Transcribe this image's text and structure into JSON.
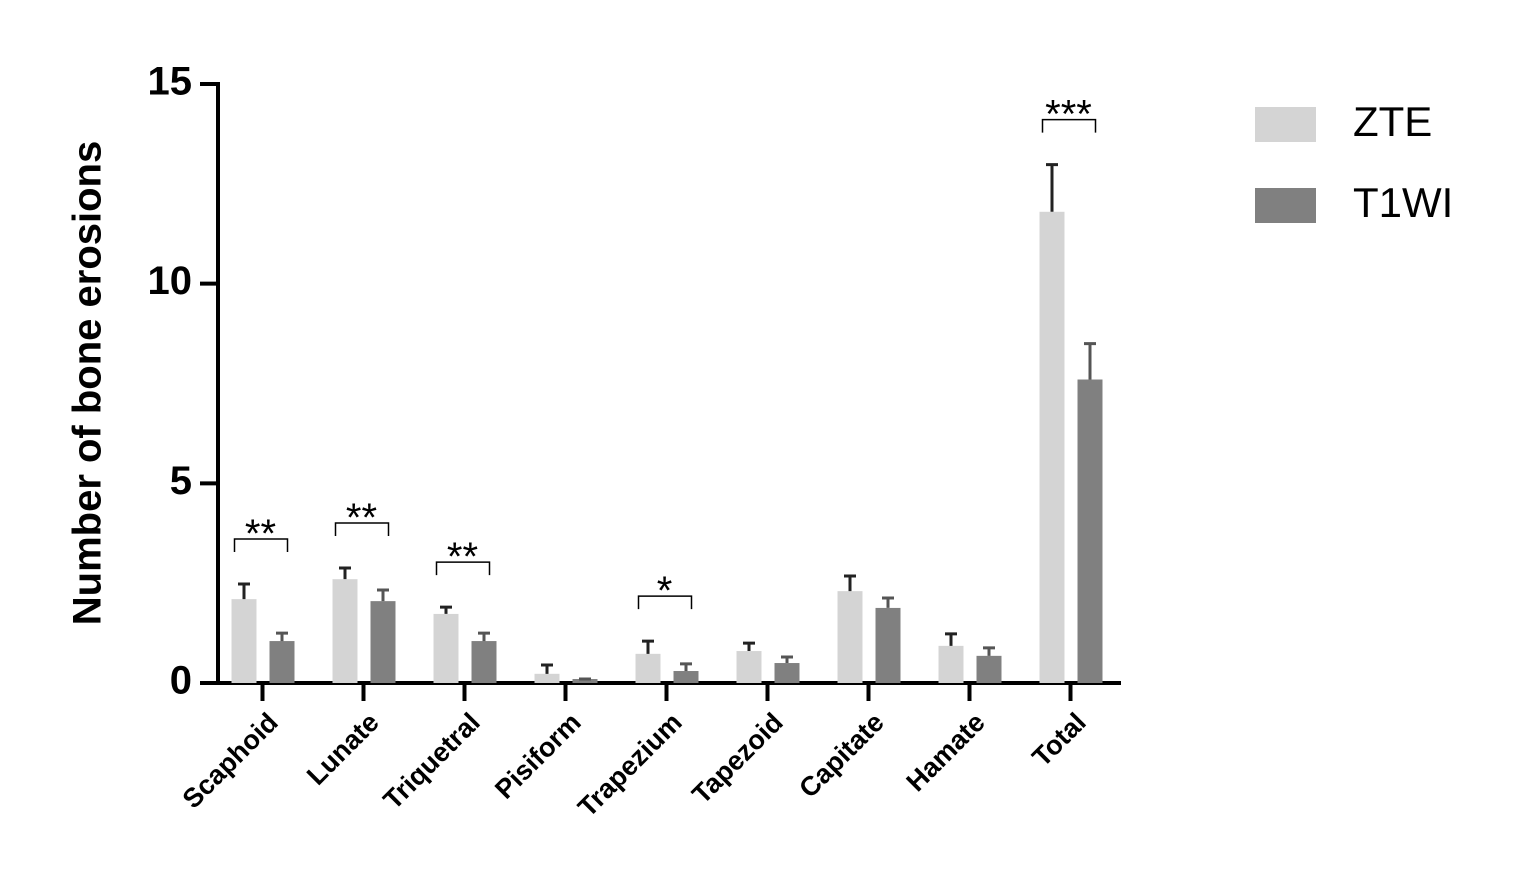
{
  "chart_data": {
    "type": "bar",
    "y_label": "Number of bone erosions",
    "categories": [
      "Scaphoid",
      "Lunate",
      "Triquetral",
      "Pisiform",
      "Trapezium",
      "Tapezoid",
      "Capitate",
      "Hamate",
      "Total"
    ],
    "series": [
      {
        "name": "ZTE",
        "color": "#d4d4d4",
        "error_color": "#222222",
        "values": [
          2.1,
          2.6,
          1.73,
          0.23,
          0.73,
          0.8,
          2.3,
          0.93,
          11.8
        ],
        "errors": [
          0.38,
          0.28,
          0.17,
          0.22,
          0.32,
          0.2,
          0.38,
          0.3,
          1.18
        ]
      },
      {
        "name": "T1WI",
        "color": "#808080",
        "error_color": "#555555",
        "values": [
          1.05,
          2.05,
          1.05,
          0.1,
          0.3,
          0.5,
          1.88,
          0.68,
          7.6
        ],
        "errors": [
          0.2,
          0.28,
          0.2,
          0,
          0.18,
          0.15,
          0.25,
          0.2,
          0.9
        ]
      }
    ],
    "annotations": [
      {
        "category": "Scaphoid",
        "text": "**"
      },
      {
        "category": "Lunate",
        "text": "**"
      },
      {
        "category": "Triquetral",
        "text": "**"
      },
      {
        "category": "Trapezium",
        "text": "*"
      },
      {
        "category": "Total",
        "text": "***"
      }
    ],
    "ylim": [
      0,
      15
    ],
    "yticks": [
      0,
      5,
      10,
      15
    ],
    "grid": false,
    "legend": "top-right"
  }
}
